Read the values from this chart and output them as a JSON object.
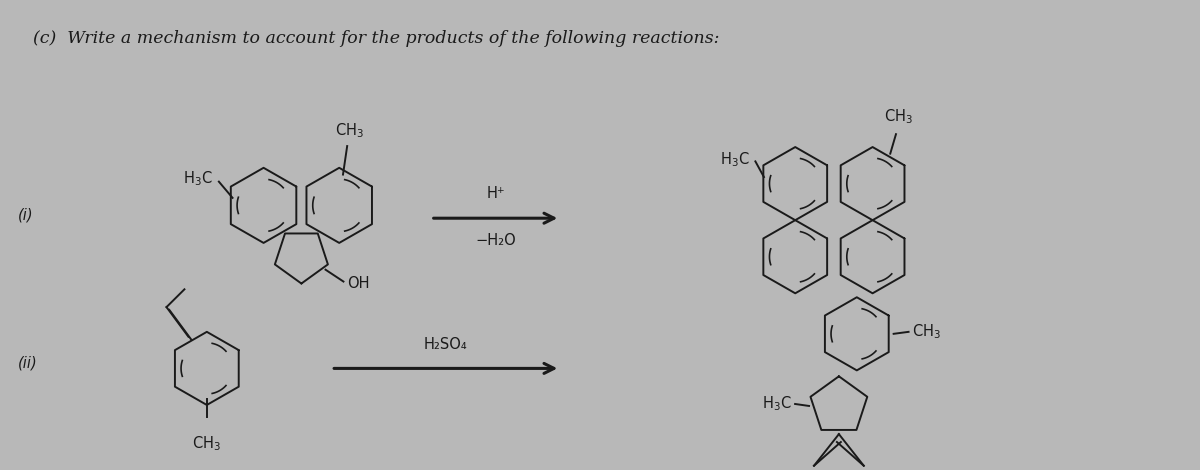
{
  "title": "(c)  Write a mechanism to account for the products of the following reactions:",
  "title_fontsize": 12.5,
  "title_color": "#1a1a1a",
  "bg_color": "#b8b8b8",
  "text_color": "#1a1a1a",
  "reaction1_label": "(i)",
  "reaction2_label": "(ii)",
  "reaction1_reagent_top": "H⁺",
  "reaction1_reagent_bot": "−H₂O",
  "reaction2_reagent_top": "H₂SO₄",
  "arrow_color": "#1a1a1a"
}
